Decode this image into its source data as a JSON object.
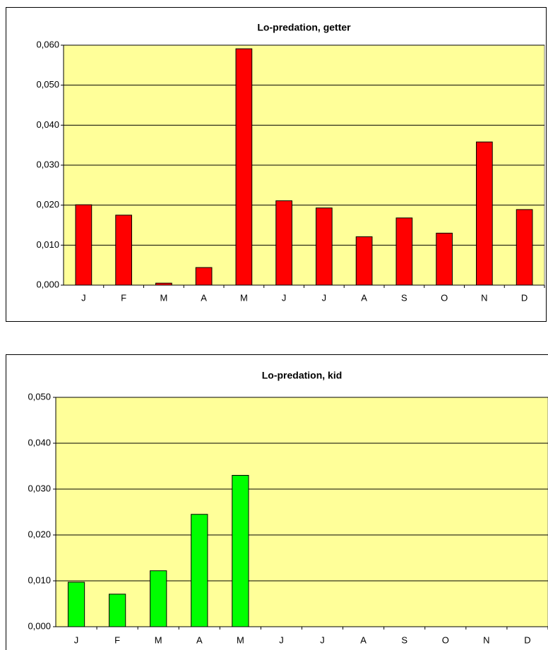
{
  "chart_data": [
    {
      "type": "bar",
      "title": "Lo-predation, getter",
      "categories": [
        "J",
        "F",
        "M",
        "A",
        "M",
        "J",
        "J",
        "A",
        "S",
        "O",
        "N",
        "D"
      ],
      "values": [
        0.0201,
        0.0175,
        0.0005,
        0.0044,
        0.0591,
        0.0211,
        0.0193,
        0.0121,
        0.0168,
        0.013,
        0.0358,
        0.0189
      ],
      "color": "#ff0000",
      "ylim": [
        0,
        0.06
      ],
      "yticks": [
        {
          "value": 0,
          "label": "0,000"
        },
        {
          "value": 0.01,
          "label": "0,010"
        },
        {
          "value": 0.02,
          "label": "0,020"
        },
        {
          "value": 0.03,
          "label": "0,030"
        },
        {
          "value": 0.04,
          "label": "0,040"
        },
        {
          "value": 0.05,
          "label": "0,050"
        },
        {
          "value": 0.06,
          "label": "0,060"
        }
      ],
      "grid": true
    },
    {
      "type": "bar",
      "title": "Lo-predation, kid",
      "categories": [
        "J",
        "F",
        "M",
        "A",
        "M",
        "J",
        "J",
        "A",
        "S",
        "O",
        "N",
        "D"
      ],
      "values": [
        0.0097,
        0.0071,
        0.0122,
        0.0245,
        0.033,
        null,
        null,
        null,
        null,
        null,
        null,
        null
      ],
      "color": "#00ff00",
      "ylim": [
        0,
        0.05
      ],
      "yticks": [
        {
          "value": 0,
          "label": "0,000"
        },
        {
          "value": 0.01,
          "label": "0,010"
        },
        {
          "value": 0.02,
          "label": "0,020"
        },
        {
          "value": 0.03,
          "label": "0,030"
        },
        {
          "value": 0.04,
          "label": "0,040"
        },
        {
          "value": 0.05,
          "label": "0,050"
        }
      ],
      "grid": true
    }
  ]
}
